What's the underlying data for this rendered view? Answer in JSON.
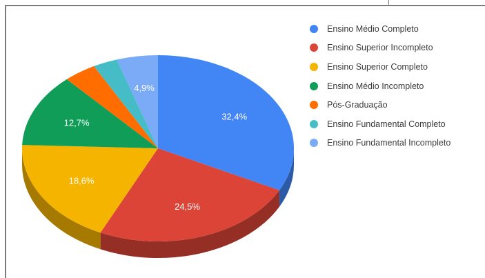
{
  "chart_data": {
    "type": "pie",
    "title": "",
    "categories": [
      "Ensino Médio Completo",
      "Ensino Superior Incompleto",
      "Ensino Superior Completo",
      "Ensino Médio Incompleto",
      "Pós-Graduação",
      "Ensino Fundamental Completo",
      "Ensino Fundamental Incompleto"
    ],
    "values": [
      32.4,
      24.5,
      18.6,
      12.7,
      3.9,
      2.9,
      4.9
    ],
    "data_labels": [
      "32,4%",
      "24,5%",
      "18,6%",
      "12,7%",
      "",
      "",
      "4,9%"
    ],
    "colors": [
      "#4285f4",
      "#db4437",
      "#f4b400",
      "#0f9d58",
      "#ff6d00",
      "#46bdc6",
      "#7baaf7"
    ],
    "three_d": true,
    "legend_position": "right",
    "grid": false
  }
}
